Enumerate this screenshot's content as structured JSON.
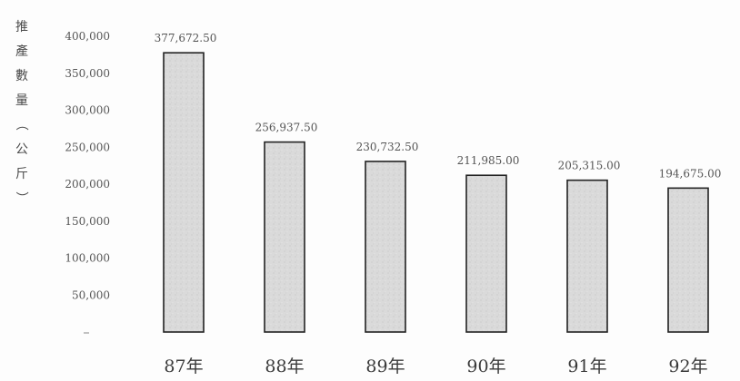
{
  "chart_data": {
    "type": "bar",
    "title": "",
    "xlabel": "",
    "ylabel": "推產數量（公斤）",
    "categories": [
      "87年",
      "88年",
      "89年",
      "90年",
      "91年",
      "92年"
    ],
    "values": [
      377672.5,
      256937.5,
      230732.5,
      211985.0,
      205315.0,
      194675.0
    ],
    "data_labels": [
      "377,672.50",
      "256,937.50",
      "230,732.50",
      "211,985.00",
      "205,315.00",
      "194,675.00"
    ],
    "yticks": [
      50000,
      100000,
      150000,
      200000,
      250000,
      300000,
      350000,
      400000
    ],
    "ytick_labels": [
      "50,000",
      "100,000",
      "150,000",
      "200,000",
      "250,000",
      "300,000",
      "350,000",
      "400,000"
    ],
    "ylim": [
      0,
      400000
    ],
    "grid": false,
    "legend": "none",
    "colors": {
      "bar_fill": "#d9d9d9",
      "bar_stroke": "#222222",
      "background": "#fdfdfd"
    }
  }
}
